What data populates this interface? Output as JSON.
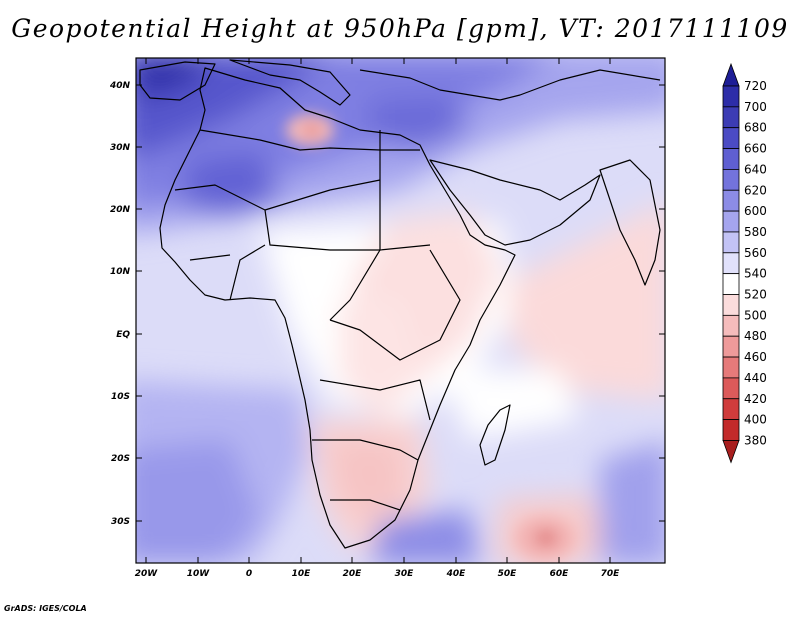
{
  "title": "Geopotential Height at 950hPa [gpm], VT: 2017111109",
  "credit": "GrADS: IGES/COLA",
  "lat_labels": [
    "40N",
    "30N",
    "20N",
    "10N",
    "EQ",
    "10S",
    "20S",
    "30S"
  ],
  "lon_labels": [
    "20W",
    "10W",
    "0",
    "10E",
    "20E",
    "30E",
    "40E",
    "50E",
    "60E",
    "70E"
  ],
  "legend_levels": [
    "720",
    "700",
    "680",
    "660",
    "640",
    "620",
    "600",
    "580",
    "560",
    "540",
    "520",
    "500",
    "480",
    "460",
    "440",
    "420",
    "400",
    "380"
  ],
  "legend_colors": [
    "#1e1e96",
    "#2d2da8",
    "#3c3cb4",
    "#4b4bc4",
    "#5f5fd2",
    "#7373dc",
    "#8c8ce6",
    "#a5a5ee",
    "#c3c3f5",
    "#e1e1fb",
    "#ffffff",
    "#fbdcdc",
    "#f5bcbc",
    "#ee9a9a",
    "#e67a7a",
    "#dc5a5a",
    "#d03c3c",
    "#c22a2a",
    "#a81e1e"
  ]
}
